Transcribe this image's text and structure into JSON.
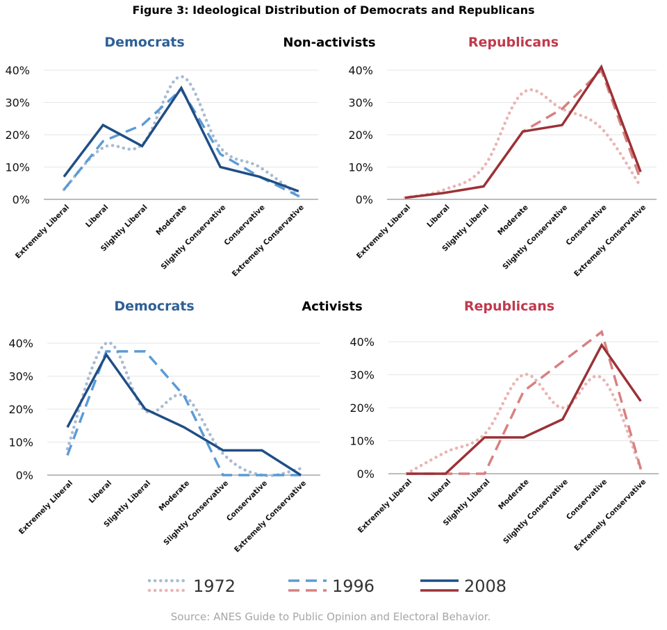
{
  "title": "Figure 3: Ideological Distribution of Democrats and Republicans",
  "row_labels": [
    "Non-activists",
    "Activists"
  ],
  "source": "Source: ANES Guide to Public Opinion and Electoral Behavior.",
  "legend": [
    {
      "label": "1972",
      "style": "dotted"
    },
    {
      "label": "1996",
      "style": "dashed"
    },
    {
      "label": "2008",
      "style": "solid"
    }
  ],
  "colors": {
    "democrats": {
      "title": "#2e5f96",
      "1972": "#a9bbd3",
      "1996": "#5b9bd5",
      "2008": "#1f4e85"
    },
    "republicans": {
      "title": "#c0394b",
      "1972": "#eab4b4",
      "1996": "#d88080",
      "2008": "#9b3236"
    },
    "grid": "#e6e6e6",
    "axis": "#a6a6a6",
    "source": "#a6a6a6"
  },
  "chart_data": [
    {
      "type": "line",
      "title": "Democrats",
      "group": "Non-activists",
      "categories": [
        "Extremely Liberal",
        "Liberal",
        "Slightly Liberal",
        "Moderate",
        "Slightly Conservative",
        "Conservative",
        "Extremely Conservative"
      ],
      "yticks": [
        "0%",
        "10%",
        "20%",
        "30%",
        "40%"
      ],
      "ylim": [
        0,
        40
      ],
      "grid": true,
      "series": [
        {
          "name": "1972",
          "values": [
            3,
            16,
            17,
            38,
            16,
            10,
            1
          ]
        },
        {
          "name": "1996",
          "values": [
            3,
            18,
            23,
            34,
            14,
            7,
            1
          ]
        },
        {
          "name": "2008",
          "values": [
            7,
            23,
            16.5,
            34.5,
            10,
            7,
            2.5
          ]
        }
      ]
    },
    {
      "type": "line",
      "title": "Republicans",
      "group": "Non-activists",
      "categories": [
        "Extremely Liberal",
        "Liberal",
        "Slightly Liberal",
        "Moderate",
        "Slightly Conservative",
        "Conservative",
        "Extremely Conservative"
      ],
      "yticks": [
        "0%",
        "10%",
        "20%",
        "30%",
        "40%"
      ],
      "ylim": [
        0,
        40
      ],
      "grid": true,
      "series": [
        {
          "name": "1972",
          "values": [
            0.5,
            3,
            10,
            33,
            28,
            22,
            4
          ]
        },
        {
          "name": "1996",
          "values": [
            0.5,
            2,
            4,
            21,
            28,
            40,
            6
          ]
        },
        {
          "name": "2008",
          "values": [
            0.5,
            2,
            4,
            21,
            23,
            41,
            8.5
          ]
        }
      ]
    },
    {
      "type": "line",
      "title": "Democrats",
      "group": "Activists",
      "categories": [
        "Extremely Liberal",
        "Liberal",
        "Slightly Liberal",
        "Moderate",
        "Slightly Conservative",
        "Conservative",
        "Extremely Conservative"
      ],
      "yticks": [
        "0%",
        "10%",
        "20%",
        "30%",
        "40%"
      ],
      "ylim": [
        0,
        40
      ],
      "grid": true,
      "series": [
        {
          "name": "1972",
          "values": [
            8,
            40,
            19.5,
            24,
            6.5,
            0,
            2
          ]
        },
        {
          "name": "1996",
          "values": [
            6,
            37.5,
            37.5,
            24,
            0,
            0,
            0
          ]
        },
        {
          "name": "2008",
          "values": [
            14.5,
            36.5,
            20,
            14.5,
            7.5,
            7.5,
            0
          ]
        }
      ]
    },
    {
      "type": "line",
      "title": "Republicans",
      "group": "Activists",
      "categories": [
        "Extremely Liberal",
        "Liberal",
        "Slightly Liberal",
        "Moderate",
        "Slightly Conservative",
        "Conservative",
        "Extremely Conservative"
      ],
      "yticks": [
        "0%",
        "10%",
        "20%",
        "30%",
        "40%"
      ],
      "ylim": [
        0,
        40
      ],
      "grid": true,
      "series": [
        {
          "name": "1972",
          "values": [
            0,
            6.5,
            12,
            30,
            20,
            29,
            1.5
          ]
        },
        {
          "name": "1996",
          "values": [
            0,
            0,
            0,
            25,
            34,
            43,
            1.5
          ]
        },
        {
          "name": "2008",
          "values": [
            0,
            0,
            11,
            11,
            16.5,
            39,
            22
          ]
        }
      ]
    }
  ]
}
